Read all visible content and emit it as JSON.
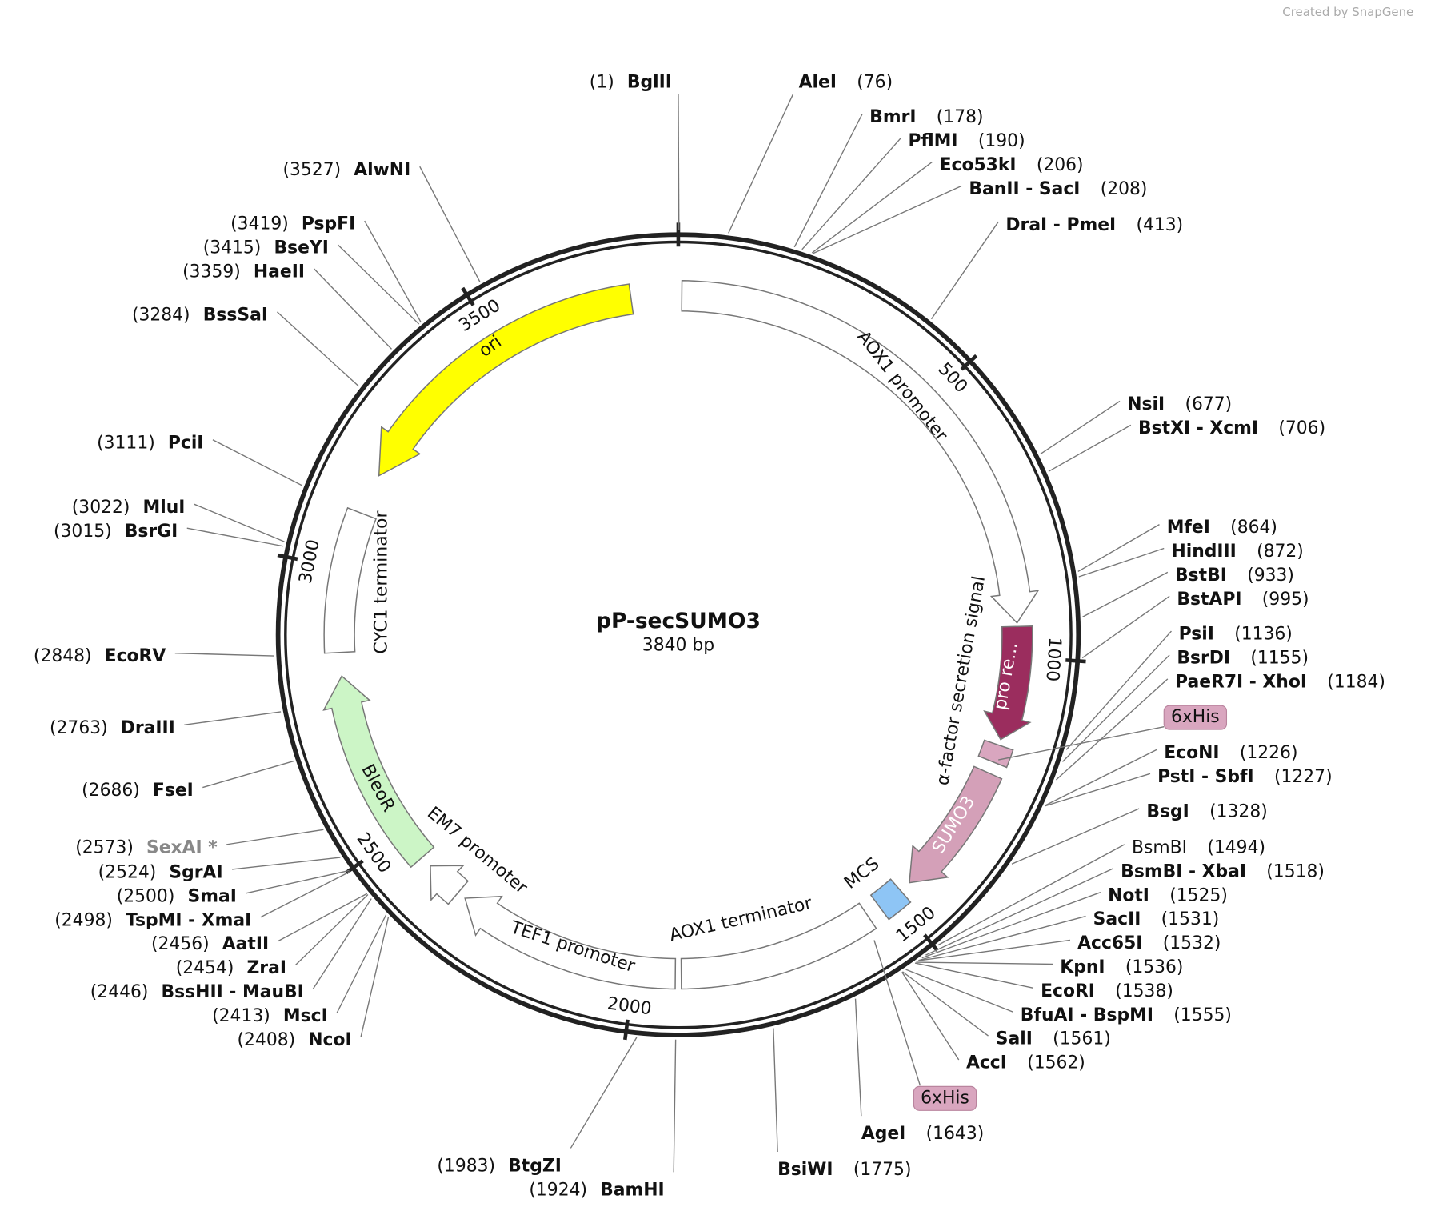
{
  "branding": "Created by SnapGene",
  "map": {
    "name": "pP-secSUMO3",
    "length": "3840 bp",
    "ticks": [
      500,
      1000,
      1500,
      2000,
      2500,
      3000,
      3500
    ]
  },
  "enzymes": [
    {
      "position": "(1)",
      "name": "BglII"
    },
    {
      "position": "(76)",
      "name": "AleI"
    },
    {
      "position": "(178)",
      "name": "BmrI"
    },
    {
      "position": "(190)",
      "name": "PflMI"
    },
    {
      "position": "(206)",
      "name": "Eco53kI"
    },
    {
      "position": "(208)",
      "name": "BanII - SacI"
    },
    {
      "position": "(413)",
      "name": "DraI - PmeI"
    },
    {
      "position": "(677)",
      "name": "NsiI"
    },
    {
      "position": "(706)",
      "name": "BstXI - XcmI"
    },
    {
      "position": "(864)",
      "name": "MfeI"
    },
    {
      "position": "(872)",
      "name": "HindIII"
    },
    {
      "position": "(933)",
      "name": "BstBI"
    },
    {
      "position": "(995)",
      "name": "BstAPI"
    },
    {
      "position": "(1136)",
      "name": "PsiI"
    },
    {
      "position": "(1155)",
      "name": "BsrDI"
    },
    {
      "position": "(1184)",
      "name": "PaeR7I - XhoI"
    },
    {
      "position": "(1226)",
      "name": "EcoNI"
    },
    {
      "position": "(1227)",
      "name": "PstI - SbfI"
    },
    {
      "position": "(1328)",
      "name": "BsgI"
    },
    {
      "position": "(1494)",
      "name": "BsmBI"
    },
    {
      "position": "(1518)",
      "name": "BsmBI - XbaI"
    },
    {
      "position": "(1525)",
      "name": "NotI"
    },
    {
      "position": "(1531)",
      "name": "SacII"
    },
    {
      "position": "(1532)",
      "name": "Acc65I"
    },
    {
      "position": "(1536)",
      "name": "KpnI"
    },
    {
      "position": "(1538)",
      "name": "EcoRI"
    },
    {
      "position": "(1555)",
      "name": "BfuAI - BspMI"
    },
    {
      "position": "(1561)",
      "name": "SalI"
    },
    {
      "position": "(1562)",
      "name": "AccI"
    },
    {
      "position": "(1643)",
      "name": "AgeI"
    },
    {
      "position": "(1775)",
      "name": "BsiWI"
    },
    {
      "position": "(1924)",
      "name": "BamHI"
    },
    {
      "position": "(1983)",
      "name": "BtgZI"
    },
    {
      "position": "(2408)",
      "name": "NcoI"
    },
    {
      "position": "(2413)",
      "name": "MscI"
    },
    {
      "position": "(2446)",
      "name": "BssHII - MauBI"
    },
    {
      "position": "(2454)",
      "name": "ZraI"
    },
    {
      "position": "(2456)",
      "name": "AatII"
    },
    {
      "position": "(2498)",
      "name": "TspMI - XmaI"
    },
    {
      "position": "(2500)",
      "name": "SmaI"
    },
    {
      "position": "(2524)",
      "name": "SgrAI"
    },
    {
      "position": "(2573)",
      "name": "SexAI *"
    },
    {
      "position": "(2686)",
      "name": "FseI"
    },
    {
      "position": "(2763)",
      "name": "DraIII"
    },
    {
      "position": "(2848)",
      "name": "EcoRV"
    },
    {
      "position": "(3015)",
      "name": "BsrGI"
    },
    {
      "position": "(3022)",
      "name": "MluI"
    },
    {
      "position": "(3111)",
      "name": "PciI"
    },
    {
      "position": "(3284)",
      "name": "BssSaI"
    },
    {
      "position": "(3359)",
      "name": "HaeII"
    },
    {
      "position": "(3415)",
      "name": "BseYI"
    },
    {
      "position": "(3419)",
      "name": "PspFI"
    },
    {
      "position": "(3527)",
      "name": "AlwNI"
    }
  ],
  "features": [
    {
      "label": "AOX1 promoter"
    },
    {
      "label": "α-factor secretion signal"
    },
    {
      "label": "pro re..."
    },
    {
      "label": "6xHis"
    },
    {
      "label": "SUMO3"
    },
    {
      "label": "MCS"
    },
    {
      "label": "6xHis"
    },
    {
      "label": "AOX1 terminator"
    },
    {
      "label": "TEF1 promoter"
    },
    {
      "label": "EM7 promoter"
    },
    {
      "label": "BleoR"
    },
    {
      "label": "CYC1 terminator"
    },
    {
      "label": "ori"
    }
  ]
}
